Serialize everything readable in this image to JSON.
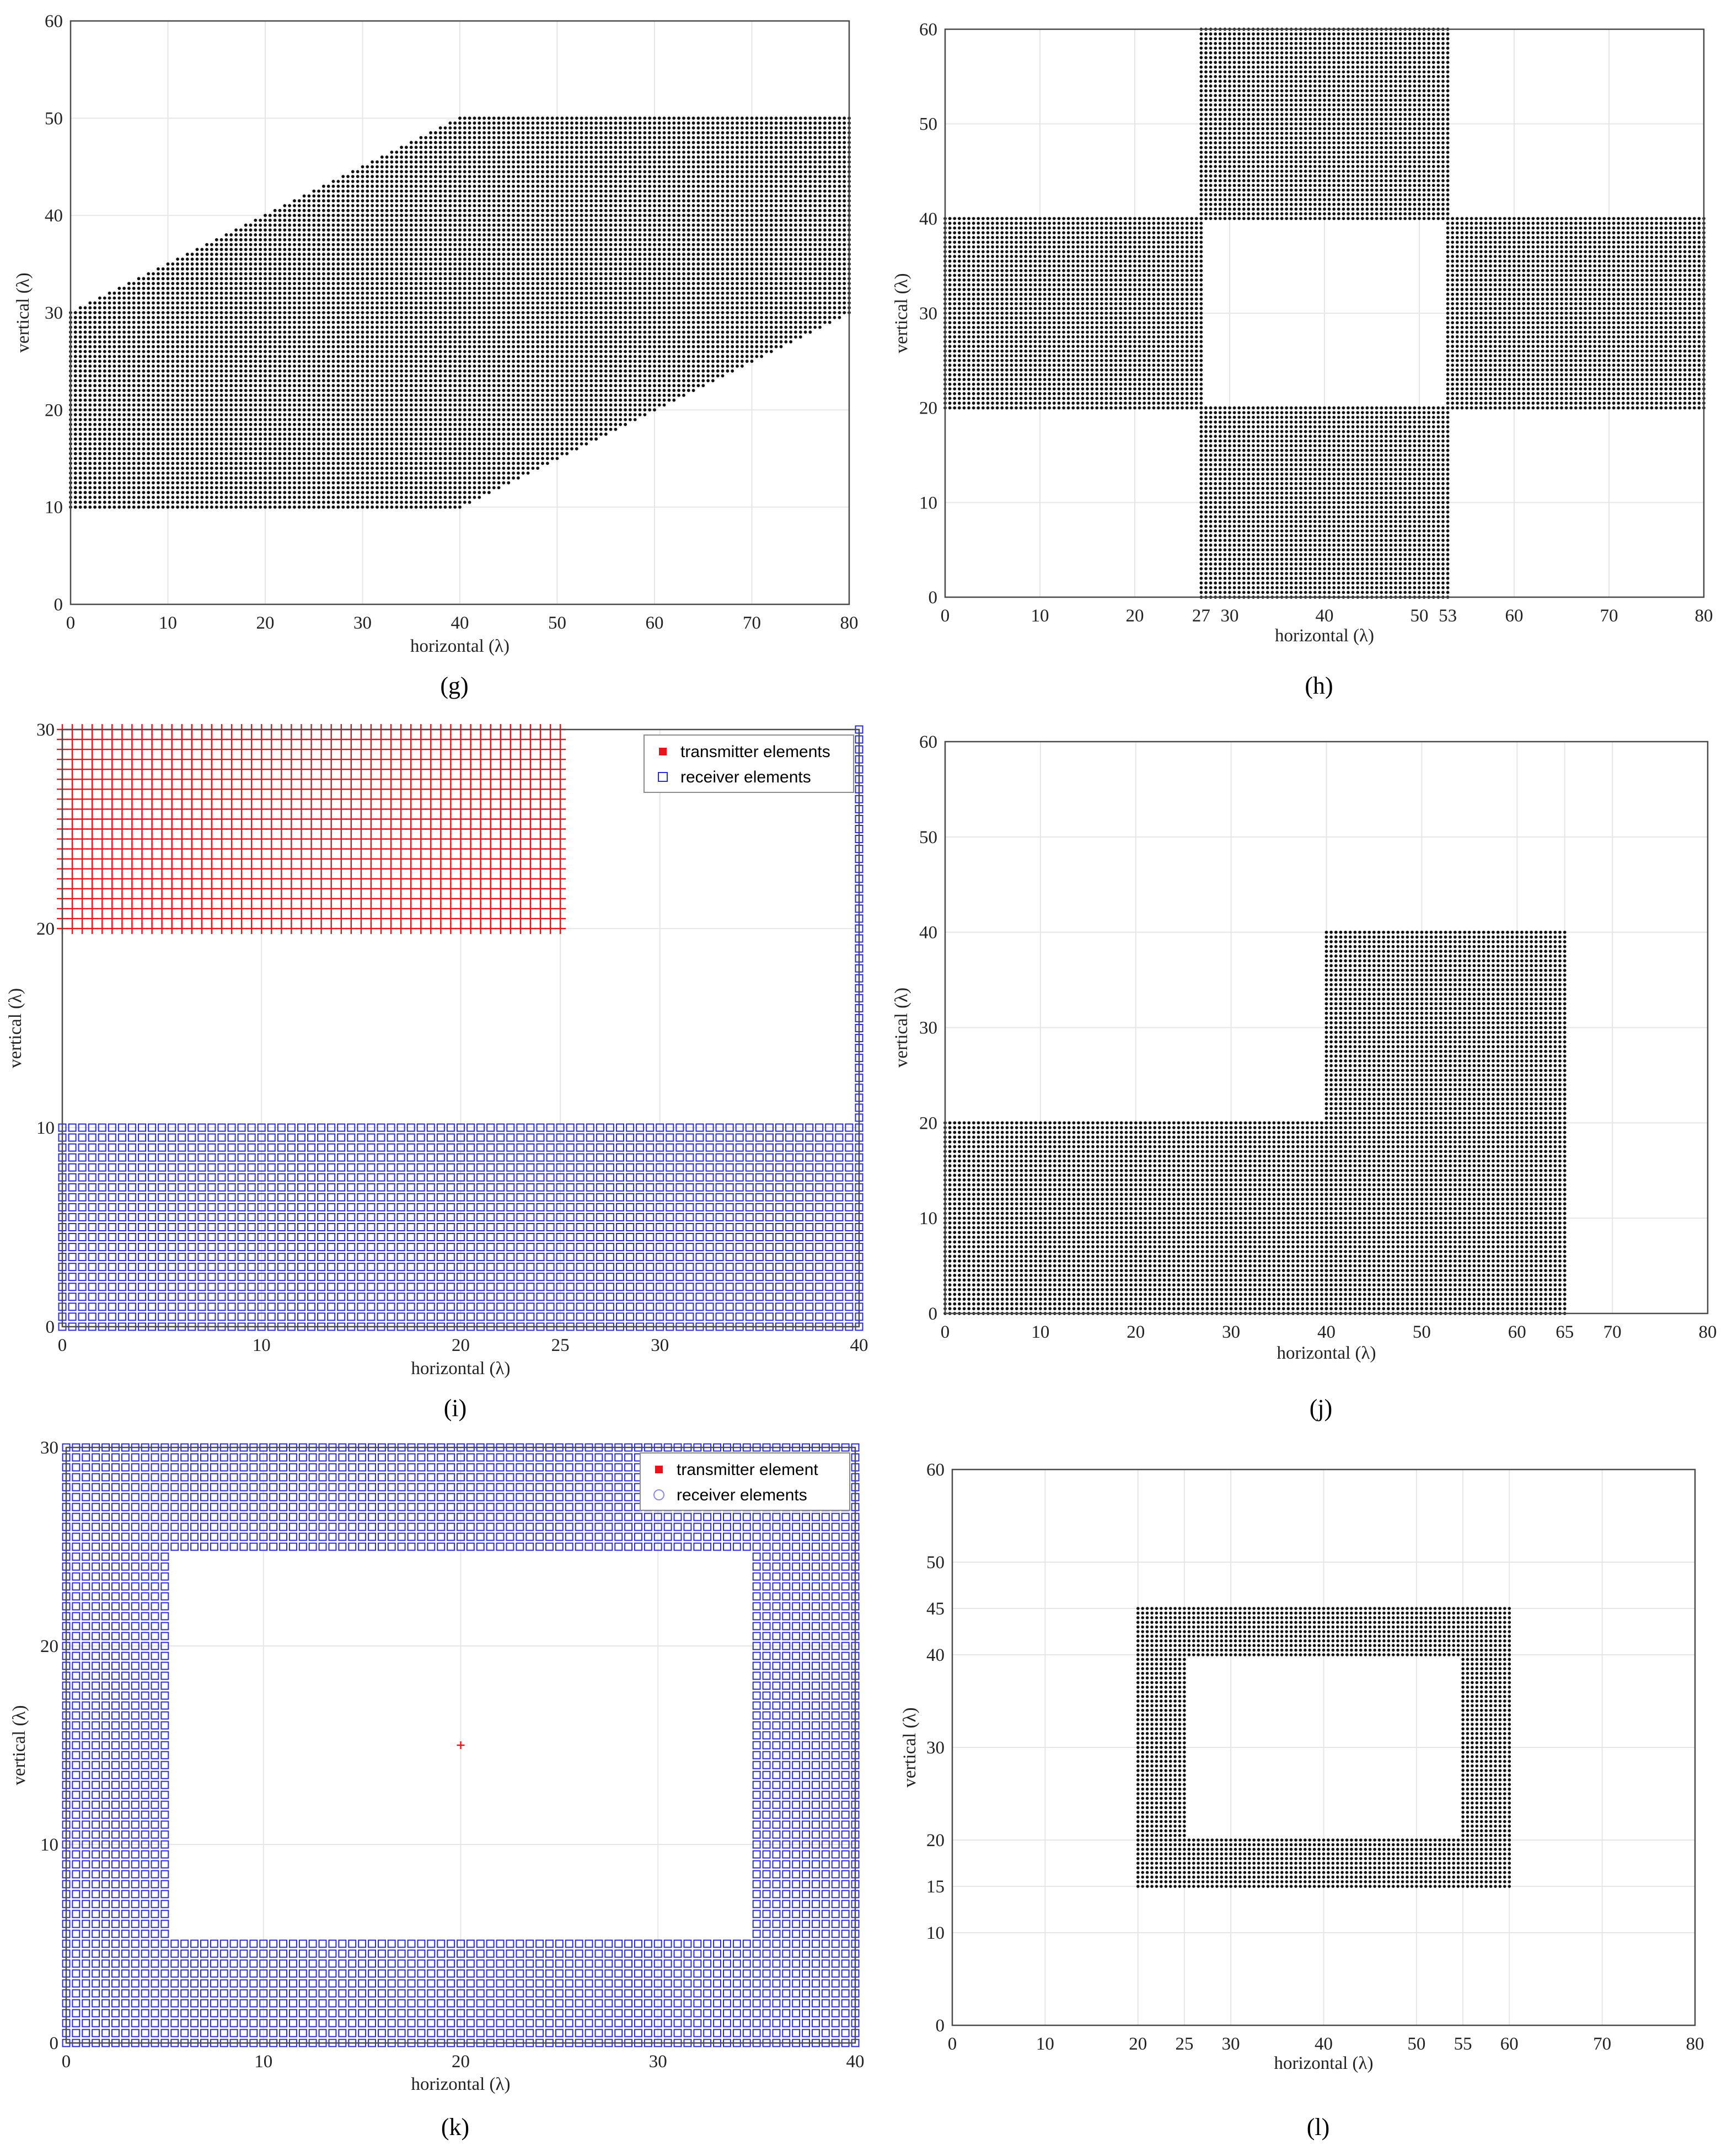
{
  "chart_data": [
    {
      "panel": "(g)",
      "type": "scatter",
      "xlabel": "horizontal (λ)",
      "ylabel": "vertical (λ)",
      "xlim": [
        0,
        80
      ],
      "ylim": [
        0,
        60
      ],
      "xticks": [
        0,
        10,
        20,
        30,
        40,
        50,
        60,
        70,
        80
      ],
      "yticks": [
        0,
        10,
        20,
        30,
        40,
        50,
        60
      ],
      "grid": true,
      "marker": "dot",
      "color": "#111111",
      "spacing": 0.5,
      "series": [
        {
          "polygon": [
            [
              0,
              10
            ],
            [
              40,
              10
            ],
            [
              80,
              30
            ],
            [
              80,
              50
            ],
            [
              40,
              50
            ],
            [
              0,
              30
            ]
          ]
        }
      ]
    },
    {
      "panel": "(h)",
      "type": "scatter",
      "xlabel": "horizontal (λ)",
      "ylabel": "vertical (λ)",
      "xlim": [
        0,
        80
      ],
      "ylim": [
        0,
        60
      ],
      "xticks": [
        0,
        10,
        20,
        27,
        30,
        40,
        50,
        53,
        60,
        70,
        80
      ],
      "yticks": [
        0,
        10,
        20,
        30,
        40,
        50,
        60
      ],
      "grid": true,
      "marker": "dot",
      "color": "#111111",
      "spacing": 0.5,
      "series": [
        {
          "rect": [
            0,
            20,
            27,
            40
          ]
        },
        {
          "rect": [
            27,
            40,
            53,
            60
          ]
        },
        {
          "rect": [
            27,
            0,
            53,
            20
          ]
        },
        {
          "rect": [
            53,
            20,
            80,
            40
          ]
        }
      ]
    },
    {
      "panel": "(i)",
      "type": "scatter",
      "xlabel": "horizontal (λ)",
      "ylabel": "vertical (λ)",
      "xlim": [
        0,
        40
      ],
      "ylim": [
        0,
        30
      ],
      "xticks": [
        0,
        10,
        20,
        25,
        30,
        40
      ],
      "yticks": [
        0,
        10,
        20,
        30
      ],
      "grid": true,
      "legend": {
        "position": "top-right",
        "entries": [
          "transmitter elements",
          "receiver elements"
        ]
      },
      "series": [
        {
          "name": "transmitter elements",
          "marker": "plus",
          "color": "#e8141c",
          "spacing": 0.5,
          "rect": [
            0,
            20,
            25,
            30
          ]
        },
        {
          "name": "receiver elements",
          "marker": "square",
          "color": "#2b2bd6",
          "spacing": 0.5,
          "rect": [
            0,
            0,
            40,
            10
          ]
        },
        {
          "name": "receiver elements",
          "marker": "square",
          "color": "#2b2bd6",
          "spacing": 0.5,
          "rect": [
            40,
            10,
            40,
            30
          ]
        }
      ]
    },
    {
      "panel": "(j)",
      "type": "scatter",
      "xlabel": "horizontal (λ)",
      "ylabel": "vertical (λ)",
      "xlim": [
        0,
        80
      ],
      "ylim": [
        0,
        60
      ],
      "xticks": [
        0,
        10,
        20,
        30,
        40,
        50,
        60,
        65,
        70,
        80
      ],
      "yticks": [
        0,
        10,
        20,
        30,
        40,
        50,
        60
      ],
      "grid": true,
      "marker": "dot",
      "color": "#111111",
      "spacing": 0.5,
      "series": [
        {
          "rect": [
            0,
            0,
            40,
            20
          ]
        },
        {
          "rect": [
            40,
            0,
            65,
            40
          ]
        }
      ]
    },
    {
      "panel": "(k)",
      "type": "scatter",
      "xlabel": "horizontal (λ)",
      "ylabel": "vertical (λ)",
      "xlim": [
        0,
        40
      ],
      "ylim": [
        0,
        30
      ],
      "xticks": [
        0,
        10,
        20,
        30,
        40
      ],
      "yticks": [
        0,
        10,
        20,
        30
      ],
      "grid": true,
      "legend": {
        "position": "top-right",
        "entries": [
          "transmitter element",
          "receiver elements"
        ]
      },
      "series": [
        {
          "name": "receiver elements",
          "marker": "square",
          "color": "#2b2bd6",
          "spacing": 0.5,
          "frame": [
            0,
            0,
            40,
            30
          ],
          "hole": [
            5.5,
            5.5,
            34.5,
            24.5
          ]
        },
        {
          "name": "transmitter element",
          "marker": "plus",
          "color": "#e8141c",
          "point": [
            20,
            15
          ]
        }
      ]
    },
    {
      "panel": "(l)",
      "type": "scatter",
      "xlabel": "horizontal (λ)",
      "ylabel": "vertical (λ)",
      "xlim": [
        0,
        80
      ],
      "ylim": [
        0,
        60
      ],
      "xticks": [
        0,
        10,
        20,
        25,
        30,
        40,
        50,
        55,
        60,
        70,
        80
      ],
      "yticks": [
        0,
        10,
        15,
        20,
        30,
        40,
        45,
        50,
        60
      ],
      "grid": true,
      "marker": "dot",
      "color": "#111111",
      "spacing": 0.5,
      "series": [
        {
          "frame": [
            20,
            15,
            60,
            45
          ],
          "hole": [
            25.5,
            20.5,
            54.5,
            39.5
          ]
        }
      ]
    }
  ]
}
